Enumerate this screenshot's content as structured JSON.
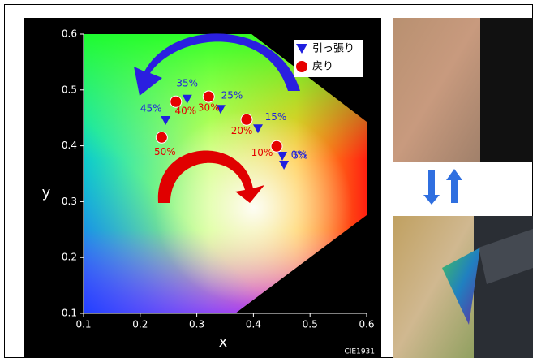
{
  "chart_data": {
    "type": "scatter",
    "x_label": "x",
    "y_label": "y",
    "annotation": "CIE1931",
    "xlim": [
      0.1,
      0.6
    ],
    "ylim": [
      0.1,
      0.6
    ],
    "xticks": [
      0.1,
      0.2,
      0.3,
      0.4,
      0.5,
      0.6
    ],
    "yticks": [
      0.1,
      0.2,
      0.3,
      0.4,
      0.5,
      0.6
    ],
    "legend": "upper right",
    "series": [
      {
        "name": "引っ張り",
        "color": "#1f1fe0",
        "marker": "triangle",
        "x": [
          0.454,
          0.451,
          0.408,
          0.342,
          0.283,
          0.245
        ],
        "values": [
          0.366,
          0.382,
          0.431,
          0.466,
          0.484,
          0.446
        ],
        "labels": [
          "0%",
          "5%",
          "15%",
          "25%",
          "35%",
          "45%"
        ]
      },
      {
        "name": "戻り",
        "color": "#e60000",
        "marker": "circle",
        "x": [
          0.441,
          0.388,
          0.321,
          0.263,
          0.238
        ],
        "values": [
          0.399,
          0.447,
          0.488,
          0.479,
          0.415
        ],
        "labels": [
          "10%",
          "20%",
          "30%",
          "40%",
          "50%"
        ]
      }
    ]
  }
}
